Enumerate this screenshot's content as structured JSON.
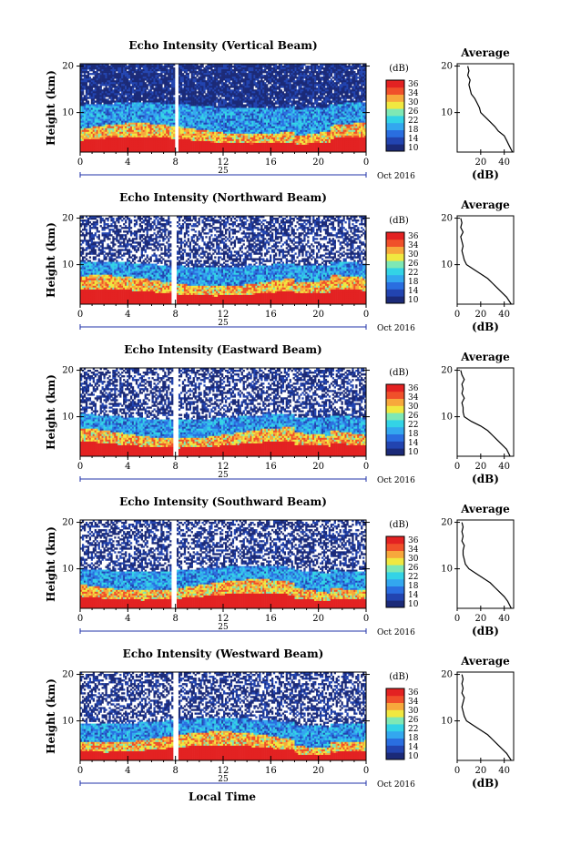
{
  "figure": {
    "xlabel": "Local Time",
    "date_label": "Oct 2016",
    "day_label": "25"
  },
  "colorbar": {
    "unit": "(dB)",
    "ticks": [
      "36",
      "34",
      "30",
      "26",
      "22",
      "18",
      "14",
      "10"
    ],
    "colors": [
      "#1b2a78",
      "#2244b0",
      "#2a6ee0",
      "#33a7ef",
      "#33d3e6",
      "#7ee8b5",
      "#f0e840",
      "#f7a83c",
      "#f0502a",
      "#e32222"
    ]
  },
  "chart_data": [
    {
      "type": "heatmap",
      "title": "Echo Intensity (Vertical Beam)",
      "ylabel": "Height (km)",
      "x_ticks": [
        "0",
        "4",
        "8",
        "12",
        "16",
        "20",
        "0"
      ],
      "y_ticks": [
        "20",
        "10"
      ],
      "xlim": [
        0,
        24
      ],
      "ylim": [
        1.5,
        20.5
      ],
      "gap_hours": [
        7.9,
        8.3
      ],
      "avg_title": "Average",
      "avg_xlabel": "(dB)",
      "avg_x_ticks": [
        "20",
        "40"
      ],
      "avg_y_ticks": [
        "20",
        "10"
      ],
      "avg_profile": {
        "height": [
          1.5,
          3,
          4,
          5,
          6,
          7,
          8,
          9,
          10,
          11,
          12,
          13,
          14,
          15,
          16,
          17,
          18,
          19,
          20
        ],
        "db": [
          47,
          44,
          42,
          40,
          35,
          32,
          28,
          24,
          20,
          19,
          17,
          15,
          12,
          11,
          10,
          11,
          9,
          10,
          9
        ]
      }
    },
    {
      "type": "heatmap",
      "title": "Echo Intensity (Northward Beam)",
      "ylabel": "Height (km)",
      "x_ticks": [
        "0",
        "4",
        "8",
        "12",
        "16",
        "20",
        "0"
      ],
      "y_ticks": [
        "20",
        "10"
      ],
      "xlim": [
        0,
        24
      ],
      "ylim": [
        1.5,
        20.5
      ],
      "gap_hours": [
        7.7,
        8.1
      ],
      "avg_title": "Average",
      "avg_xlabel": "(dB)",
      "avg_x_ticks": [
        "0",
        "20",
        "40"
      ],
      "avg_y_ticks": [
        "20",
        "10"
      ],
      "avg_profile": {
        "height": [
          1.5,
          3,
          4,
          5,
          6,
          7,
          8,
          9,
          10,
          11,
          12,
          13,
          14,
          15,
          16,
          17,
          18,
          19,
          20
        ],
        "db": [
          46,
          42,
          38,
          34,
          30,
          26,
          20,
          14,
          8,
          6,
          5,
          4,
          5,
          4,
          3,
          5,
          3,
          4,
          3
        ]
      }
    },
    {
      "type": "heatmap",
      "title": "Echo Intensity (Eastward Beam)",
      "ylabel": "Height (km)",
      "x_ticks": [
        "0",
        "4",
        "8",
        "12",
        "16",
        "20",
        "0"
      ],
      "y_ticks": [
        "20",
        "10"
      ],
      "xlim": [
        0,
        24
      ],
      "ylim": [
        1.5,
        20.5
      ],
      "gap_hours": [
        7.8,
        8.2
      ],
      "avg_title": "Average",
      "avg_xlabel": "(dB)",
      "avg_x_ticks": [
        "0",
        "20",
        "40"
      ],
      "avg_y_ticks": [
        "20",
        "10"
      ],
      "avg_profile": {
        "height": [
          1.5,
          3,
          4,
          5,
          6,
          7,
          8,
          9,
          10,
          11,
          12,
          13,
          14,
          15,
          16,
          17,
          18,
          19,
          20
        ],
        "db": [
          45,
          42,
          38,
          34,
          30,
          26,
          20,
          12,
          6,
          5,
          5,
          4,
          6,
          4,
          5,
          4,
          6,
          4,
          3
        ]
      }
    },
    {
      "type": "heatmap",
      "title": "Echo Intensity (Southward Beam)",
      "ylabel": "Height (km)",
      "x_ticks": [
        "0",
        "4",
        "8",
        "12",
        "16",
        "20",
        "0"
      ],
      "y_ticks": [
        "20",
        "10"
      ],
      "xlim": [
        0,
        24
      ],
      "ylim": [
        1.5,
        20.5
      ],
      "gap_hours": [
        7.7,
        8.1
      ],
      "avg_title": "Average",
      "avg_xlabel": "(dB)",
      "avg_x_ticks": [
        "0",
        "20",
        "40"
      ],
      "avg_y_ticks": [
        "20",
        "10"
      ],
      "avg_profile": {
        "height": [
          1.5,
          3,
          4,
          5,
          6,
          7,
          8,
          9,
          10,
          11,
          12,
          13,
          14,
          15,
          16,
          17,
          18,
          19,
          20
        ],
        "db": [
          46,
          43,
          40,
          36,
          32,
          28,
          22,
          16,
          10,
          7,
          6,
          5,
          5,
          6,
          4,
          5,
          4,
          5,
          4
        ]
      }
    },
    {
      "type": "heatmap",
      "title": "Echo Intensity (Westward Beam)",
      "ylabel": "Height (km)",
      "x_ticks": [
        "0",
        "4",
        "8",
        "12",
        "16",
        "20",
        "0"
      ],
      "y_ticks": [
        "20",
        "10"
      ],
      "xlim": [
        0,
        24
      ],
      "ylim": [
        1.5,
        20.5
      ],
      "gap_hours": [
        7.8,
        8.2
      ],
      "avg_title": "Average",
      "avg_xlabel": "(dB)",
      "avg_x_ticks": [
        "0",
        "20",
        "40"
      ],
      "avg_y_ticks": [
        "20",
        "10"
      ],
      "avg_profile": {
        "height": [
          1.5,
          3,
          4,
          5,
          6,
          7,
          8,
          9,
          10,
          11,
          12,
          13,
          14,
          15,
          16,
          17,
          18,
          19,
          20
        ],
        "db": [
          46,
          42,
          38,
          34,
          30,
          26,
          20,
          14,
          8,
          6,
          5,
          4,
          5,
          6,
          4,
          5,
          4,
          5,
          4
        ]
      }
    }
  ]
}
